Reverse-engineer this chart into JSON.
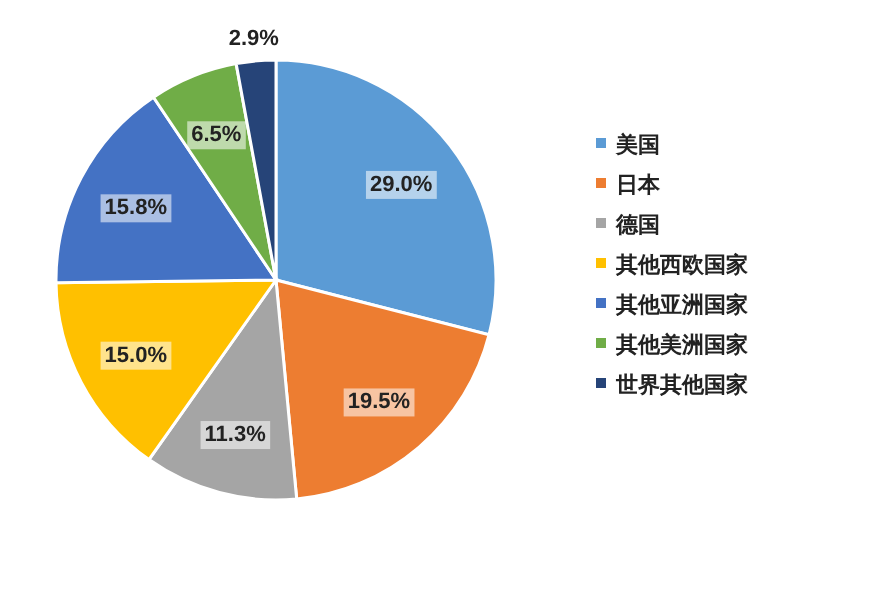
{
  "chart_data": {
    "type": "pie",
    "categories": [
      "美国",
      "日本",
      "德国",
      "其他西欧国家",
      "其他亚洲国家",
      "其他美洲国家",
      "世界其他国家"
    ],
    "values": [
      29.0,
      19.5,
      11.3,
      15.0,
      15.8,
      6.5,
      2.9
    ],
    "value_labels": [
      "29.0%",
      "19.5%",
      "11.3%",
      "15.0%",
      "15.8%",
      "6.5%",
      "2.9%"
    ],
    "colors": [
      "#5b9bd5",
      "#ed7d31",
      "#a5a5a5",
      "#ffc000",
      "#4472c4",
      "#70ad47",
      "#264478"
    ],
    "legend": "right"
  }
}
